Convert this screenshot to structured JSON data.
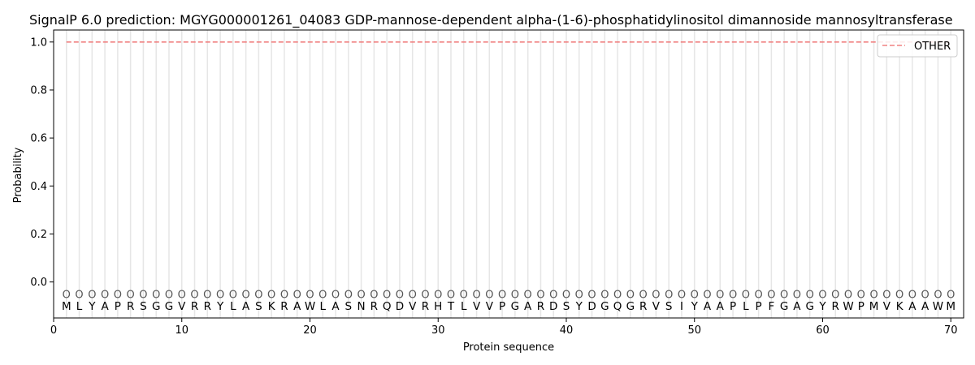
{
  "chart_data": {
    "type": "line",
    "title": "SignalP 6.0 prediction: MGYG000001261_04083 GDP-mannose-dependent alpha-(1-6)-phosphatidylinositol dimannoside mannosyltransferase",
    "xlabel": "Protein sequence",
    "ylabel": "Probability",
    "xlim": [
      0,
      71
    ],
    "ylim": [
      -0.15,
      1.05
    ],
    "xticks": [
      0,
      10,
      20,
      30,
      40,
      50,
      60,
      70
    ],
    "yticks": [
      "0.0",
      "0.2",
      "0.4",
      "0.6",
      "0.8",
      "1.0"
    ],
    "sequence": [
      "M",
      "L",
      "Y",
      "A",
      "P",
      "R",
      "S",
      "G",
      "G",
      "V",
      "R",
      "R",
      "Y",
      "L",
      "A",
      "S",
      "K",
      "R",
      "A",
      "W",
      "L",
      "A",
      "S",
      "N",
      "R",
      "Q",
      "D",
      "V",
      "R",
      "H",
      "T",
      "L",
      "V",
      "V",
      "P",
      "G",
      "A",
      "R",
      "D",
      "S",
      "Y",
      "D",
      "G",
      "Q",
      "G",
      "R",
      "V",
      "S",
      "I",
      "Y",
      "A",
      "A",
      "P",
      "L",
      "P",
      "F",
      "G",
      "A",
      "G",
      "Y",
      "R",
      "W",
      "P",
      "M",
      "V",
      "K",
      "A",
      "A",
      "W",
      "M"
    ],
    "region_label": "O",
    "region_label_y": -0.05,
    "series": [
      {
        "name": "OTHER",
        "color": "#f08080",
        "style": "dashed",
        "x_start": 1,
        "x_end": 70,
        "y": 1.0
      }
    ],
    "legend": {
      "position": "top-right",
      "entries": [
        "OTHER"
      ]
    },
    "grid": "vertical lines at each residue"
  }
}
